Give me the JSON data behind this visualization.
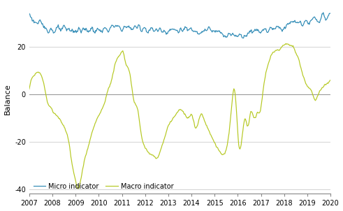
{
  "title": "",
  "ylabel": "Balance",
  "xlim": [
    2007.0,
    2020.0
  ],
  "ylim": [
    -42,
    38
  ],
  "yticks": [
    -40,
    -20,
    0,
    20
  ],
  "xtick_years": [
    2007,
    2008,
    2009,
    2010,
    2011,
    2012,
    2013,
    2014,
    2015,
    2016,
    2017,
    2018,
    2019,
    2020
  ],
  "micro_color": "#2e8ab5",
  "macro_color": "#b5c820",
  "zero_line_color": "#999999",
  "grid_color": "#cccccc",
  "legend_micro": "Micro indicator",
  "legend_macro": "Macro indicator",
  "background_color": "#ffffff",
  "micro_keypoints_t": [
    2007.0,
    2007.2,
    2007.5,
    2007.8,
    2008.0,
    2008.3,
    2008.6,
    2008.9,
    2009.2,
    2009.5,
    2009.8,
    2010.0,
    2010.3,
    2010.6,
    2010.9,
    2011.0,
    2011.3,
    2011.6,
    2011.9,
    2012.2,
    2012.5,
    2012.8,
    2013.0,
    2013.3,
    2013.6,
    2013.9,
    2014.2,
    2014.5,
    2014.8,
    2015.0,
    2015.3,
    2015.5,
    2015.7,
    2015.9,
    2016.1,
    2016.3,
    2016.5,
    2016.7,
    2016.9,
    2017.1,
    2017.3,
    2017.5,
    2017.7,
    2017.9,
    2018.1,
    2018.3,
    2018.5,
    2018.7,
    2018.9,
    2019.1,
    2019.3,
    2019.5,
    2019.7,
    2019.9,
    2020.0
  ],
  "micro_keypoints_v": [
    34,
    31,
    29,
    28,
    27,
    27,
    27,
    27,
    27,
    27,
    27,
    27,
    27,
    28,
    28,
    28,
    28,
    28,
    28,
    27,
    27,
    27,
    27,
    27,
    27,
    27,
    27,
    27,
    27,
    26,
    26,
    25,
    25,
    25,
    25,
    25,
    26,
    27,
    27,
    27,
    27,
    28,
    28,
    28,
    29,
    30,
    30,
    30,
    30,
    30,
    31,
    32,
    32,
    33,
    34
  ],
  "macro_keypoints_t": [
    2007.0,
    2007.2,
    2007.4,
    2007.6,
    2007.75,
    2007.9,
    2008.1,
    2008.3,
    2008.5,
    2008.7,
    2008.85,
    2009.0,
    2009.1,
    2009.2,
    2009.4,
    2009.6,
    2009.8,
    2010.0,
    2010.2,
    2010.4,
    2010.6,
    2010.75,
    2010.85,
    2010.95,
    2011.05,
    2011.15,
    2011.3,
    2011.5,
    2011.7,
    2011.85,
    2012.0,
    2012.15,
    2012.3,
    2012.5,
    2012.65,
    2012.8,
    2013.0,
    2013.2,
    2013.4,
    2013.6,
    2013.8,
    2014.0,
    2014.2,
    2014.4,
    2014.6,
    2014.75,
    2014.9,
    2015.05,
    2015.2,
    2015.35,
    2015.5,
    2015.65,
    2015.75,
    2015.85,
    2015.95,
    2016.05,
    2016.15,
    2016.3,
    2016.45,
    2016.55,
    2016.65,
    2016.75,
    2016.85,
    2016.95,
    2017.1,
    2017.3,
    2017.5,
    2017.65,
    2017.8,
    2017.95,
    2018.1,
    2018.25,
    2018.4,
    2018.55,
    2018.7,
    2018.85,
    2019.0,
    2019.15,
    2019.3,
    2019.5,
    2019.7,
    2019.9,
    2020.0
  ],
  "macro_keypoints_v": [
    2,
    8,
    9,
    6,
    -2,
    -6,
    -8,
    -10,
    -14,
    -20,
    -30,
    -37,
    -40,
    -37,
    -28,
    -20,
    -14,
    -9,
    -5,
    2,
    8,
    14,
    16,
    17,
    18,
    14,
    10,
    -2,
    -8,
    -18,
    -22,
    -25,
    -26,
    -27,
    -24,
    -20,
    -14,
    -10,
    -8,
    -7,
    -9,
    -8,
    -14,
    -8,
    -12,
    -15,
    -18,
    -22,
    -24,
    -25,
    -23,
    -14,
    -4,
    2,
    -8,
    -22,
    -21,
    -10,
    -13,
    -8,
    -9,
    -10,
    -8,
    -7,
    2,
    12,
    17,
    19,
    19,
    20,
    21,
    21,
    20,
    17,
    12,
    7,
    4,
    2,
    -2,
    0,
    4,
    5,
    6
  ]
}
